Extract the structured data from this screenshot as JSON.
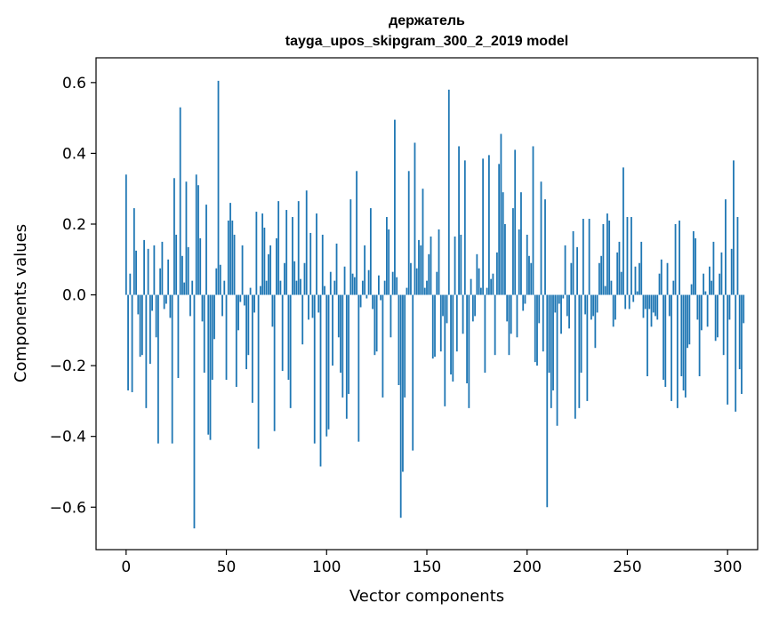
{
  "chart_data": {
    "type": "bar",
    "title": "держатель",
    "subtitle": "tayga_upos_skipgram_300_2_2019 model",
    "xlabel": "Vector components",
    "ylabel": "Components values",
    "xlim": [
      -15,
      315
    ],
    "ylim": [
      -0.72,
      0.67
    ],
    "xticks": [
      0,
      50,
      100,
      150,
      200,
      250,
      300
    ],
    "yticks": [
      -0.6,
      -0.4,
      -0.2,
      0.0,
      0.2,
      0.4,
      0.6
    ],
    "ytick_labels": [
      "−0.6",
      "−0.4",
      "−0.2",
      "0.0",
      "0.2",
      "0.4",
      "0.6"
    ],
    "grid": false,
    "legend": "none",
    "bar_color": "#1f77b4",
    "values": [
      0.34,
      -0.27,
      0.06,
      -0.275,
      0.245,
      0.125,
      -0.055,
      -0.175,
      -0.17,
      0.155,
      -0.32,
      0.13,
      -0.195,
      -0.045,
      0.14,
      -0.12,
      -0.42,
      0.075,
      0.15,
      -0.04,
      -0.025,
      0.1,
      -0.065,
      -0.42,
      0.33,
      0.17,
      -0.235,
      0.53,
      0.11,
      0.035,
      0.32,
      0.135,
      -0.06,
      0.04,
      -0.66,
      0.34,
      0.31,
      0.16,
      -0.075,
      -0.22,
      0.255,
      -0.395,
      -0.41,
      -0.24,
      -0.125,
      0.075,
      0.605,
      0.085,
      -0.06,
      0.04,
      -0.24,
      0.21,
      0.26,
      0.21,
      0.17,
      -0.26,
      -0.1,
      -0.02,
      0.14,
      -0.03,
      -0.21,
      -0.17,
      0.02,
      -0.305,
      -0.05,
      0.235,
      -0.435,
      0.025,
      0.23,
      0.19,
      0.04,
      0.115,
      0.14,
      -0.09,
      -0.385,
      0.16,
      0.265,
      0.04,
      -0.215,
      0.09,
      0.24,
      -0.24,
      -0.32,
      0.22,
      0.095,
      0.04,
      0.265,
      0.045,
      -0.14,
      0.09,
      0.295,
      -0.07,
      0.175,
      -0.065,
      -0.42,
      0.23,
      -0.05,
      -0.485,
      0.17,
      0.025,
      -0.4,
      -0.38,
      0.065,
      -0.2,
      0.04,
      0.145,
      -0.12,
      -0.22,
      -0.29,
      0.08,
      -0.35,
      -0.28,
      0.27,
      0.06,
      0.05,
      0.35,
      -0.415,
      -0.035,
      0.04,
      0.14,
      -0.01,
      0.07,
      0.245,
      -0.04,
      -0.17,
      -0.16,
      0.055,
      -0.015,
      -0.29,
      0.04,
      0.22,
      0.185,
      -0.12,
      0.065,
      0.495,
      0.05,
      -0.255,
      -0.63,
      -0.5,
      -0.29,
      0.02,
      0.35,
      0.09,
      -0.44,
      0.43,
      0.075,
      0.155,
      0.14,
      0.3,
      0.02,
      0.04,
      0.115,
      0.165,
      -0.18,
      -0.175,
      0.065,
      0.185,
      -0.16,
      -0.06,
      -0.315,
      -0.08,
      0.58,
      -0.225,
      -0.245,
      0.165,
      -0.16,
      0.42,
      0.17,
      -0.11,
      0.38,
      -0.25,
      -0.32,
      0.045,
      -0.075,
      -0.06,
      0.115,
      0.075,
      0.02,
      0.385,
      -0.22,
      0.02,
      0.395,
      0.045,
      0.06,
      -0.17,
      0.12,
      0.37,
      0.455,
      0.29,
      0.2,
      -0.075,
      -0.17,
      -0.11,
      0.245,
      0.41,
      -0.12,
      0.185,
      0.29,
      -0.045,
      -0.025,
      0.17,
      0.11,
      0.09,
      0.42,
      -0.19,
      -0.2,
      -0.08,
      0.32,
      -0.16,
      0.27,
      -0.6,
      -0.22,
      -0.32,
      -0.27,
      -0.05,
      -0.37,
      -0.025,
      -0.11,
      -0.01,
      0.14,
      -0.06,
      -0.095,
      0.09,
      0.18,
      -0.35,
      0.135,
      -0.32,
      -0.22,
      0.215,
      -0.055,
      -0.3,
      0.215,
      -0.07,
      -0.06,
      -0.15,
      -0.05,
      0.09,
      0.11,
      0.2,
      0.025,
      0.23,
      0.21,
      0.04,
      -0.09,
      -0.07,
      0.12,
      0.15,
      0.065,
      0.36,
      -0.04,
      0.22,
      -0.04,
      0.22,
      -0.02,
      0.08,
      0.01,
      0.09,
      0.15,
      -0.065,
      -0.04,
      -0.23,
      -0.04,
      -0.09,
      -0.05,
      -0.06,
      -0.07,
      0.06,
      0.1,
      -0.24,
      -0.26,
      0.09,
      -0.06,
      -0.3,
      0.04,
      0.2,
      -0.32,
      0.21,
      -0.23,
      -0.27,
      -0.29,
      -0.15,
      -0.14,
      0.03,
      0.18,
      0.16,
      -0.07,
      -0.23,
      -0.1,
      0.06,
      0.01,
      -0.09,
      0.08,
      0.04,
      0.15,
      -0.13,
      -0.12,
      0.06,
      0.12,
      -0.17,
      0.27,
      -0.31,
      -0.07,
      0.13,
      0.38,
      -0.33,
      0.22,
      -0.21,
      -0.28,
      -0.08
    ]
  }
}
